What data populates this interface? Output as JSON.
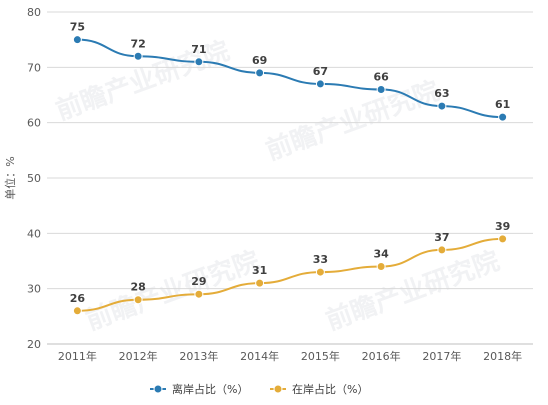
{
  "chart_data": {
    "type": "line",
    "categories": [
      "2011年",
      "2012年",
      "2013年",
      "2014年",
      "2015年",
      "2016年",
      "2017年",
      "2018年"
    ],
    "series": [
      {
        "name": "离岸占比（%）",
        "color": "#2b7bb3",
        "values": [
          75,
          72,
          71,
          69,
          67,
          66,
          63,
          61
        ]
      },
      {
        "name": "在岸占比（%）",
        "color": "#e4ac39",
        "values": [
          26,
          28,
          29,
          31,
          33,
          34,
          37,
          39
        ]
      }
    ],
    "title": "",
    "xlabel": "",
    "ylabel": "单位：%",
    "ylim": [
      20,
      80
    ],
    "yticks": [
      20,
      30,
      40,
      50,
      60,
      70,
      80
    ],
    "grid": true,
    "legend_position": "bottom-center",
    "watermark": "前瞻产业研究院"
  }
}
